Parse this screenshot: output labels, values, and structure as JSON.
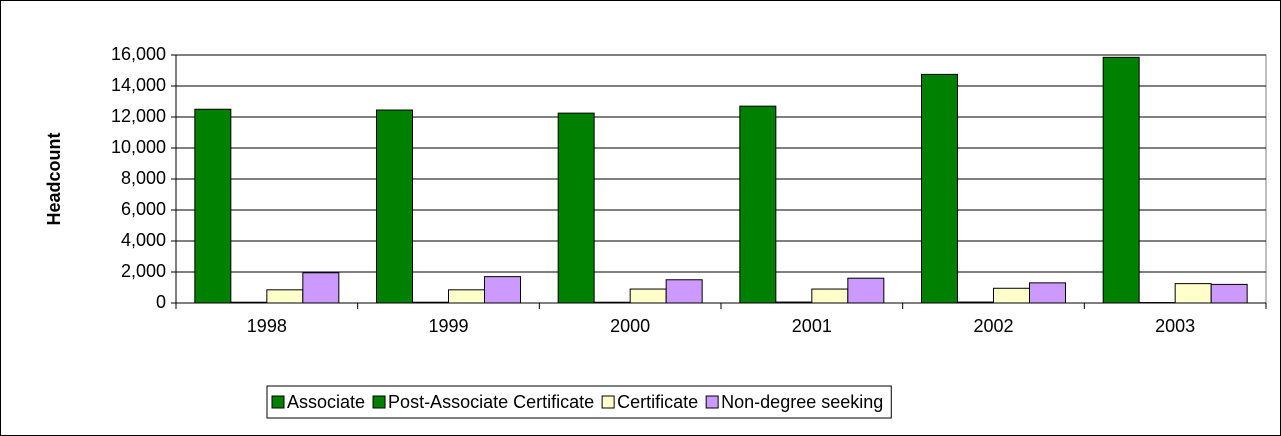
{
  "chart_data": {
    "type": "bar",
    "ylabel": "Headcount",
    "categories": [
      "1998",
      "1999",
      "2000",
      "2001",
      "2002",
      "2003"
    ],
    "series": [
      {
        "name": "Associate",
        "color": "#008000",
        "values": [
          12500,
          12450,
          12250,
          12700,
          14750,
          15850
        ]
      },
      {
        "name": "Post-Associate Certificate",
        "color": "#008000",
        "values": [
          50,
          50,
          50,
          60,
          60,
          30
        ]
      },
      {
        "name": "Certificate",
        "color": "#ffffcc",
        "values": [
          850,
          850,
          900,
          900,
          950,
          1250
        ]
      },
      {
        "name": "Non-degree seeking",
        "color": "#cc99ff",
        "values": [
          1950,
          1700,
          1500,
          1600,
          1300,
          1200
        ]
      }
    ],
    "ylim": [
      0,
      16000
    ],
    "yticks": [
      0,
      {
        "value": 2000,
        "label": "2,000"
      },
      {
        "value": 4000,
        "label": "4,000"
      },
      {
        "value": 6000,
        "label": "6,000"
      },
      {
        "value": 8000,
        "label": "8,000"
      },
      {
        "value": 10000,
        "label": "10,000"
      },
      {
        "value": 12000,
        "label": "12,000"
      },
      {
        "value": 14000,
        "label": "14,000"
      },
      {
        "value": 16000,
        "label": "16,000"
      }
    ],
    "grid": true,
    "legend": "bottom"
  }
}
